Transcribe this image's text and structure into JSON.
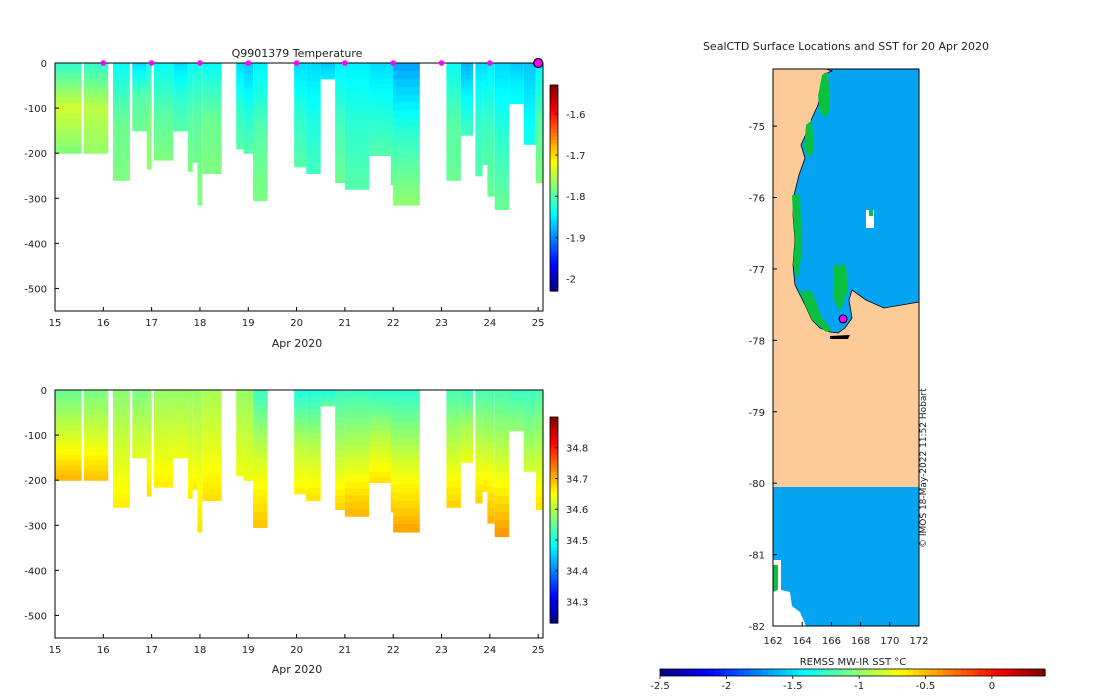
{
  "chart_data": [
    {
      "type": "heatmap",
      "title": "Q9901379  Temperature",
      "xlabel": "Apr 2020",
      "ylabel": "",
      "xlim": [
        15,
        25.1
      ],
      "ylim": [
        -550,
        0
      ],
      "xticks": [
        15,
        16,
        17,
        18,
        19,
        20,
        21,
        22,
        23,
        24,
        25
      ],
      "yticks": [
        0,
        -100,
        -200,
        -300,
        -400,
        -500
      ],
      "colorbar": {
        "ticks": [
          -1.6,
          -1.7,
          -1.8,
          -1.9,
          -2
        ],
        "range": [
          -2.03,
          -1.53
        ]
      },
      "profile_markers_day": [
        16,
        17,
        18,
        19,
        20,
        21,
        22,
        23,
        24
      ],
      "latest_profile_day": 25,
      "profiles": [
        {
          "t": 15.0,
          "w": 0.55,
          "depth": 200,
          "top": -1.82,
          "mid": -1.74,
          "bottom": -1.78
        },
        {
          "t": 15.6,
          "w": 0.5,
          "depth": 200,
          "top": -1.82,
          "mid": -1.75,
          "bottom": -1.77
        },
        {
          "t": 16.2,
          "w": 0.35,
          "depth": 260,
          "top": -1.84,
          "mid": -1.79,
          "bottom": -1.78
        },
        {
          "t": 16.6,
          "w": 0.3,
          "depth": 150,
          "top": -1.86,
          "mid": -1.8,
          "bottom": -1.79
        },
        {
          "t": 16.9,
          "w": 0.1,
          "depth": 235,
          "top": -1.83,
          "mid": -1.78,
          "bottom": -1.77
        },
        {
          "t": 17.05,
          "w": 0.4,
          "depth": 215,
          "top": -1.84,
          "mid": -1.8,
          "bottom": -1.78
        },
        {
          "t": 17.45,
          "w": 0.3,
          "depth": 150,
          "top": -1.86,
          "mid": -1.82,
          "bottom": -1.8
        },
        {
          "t": 17.75,
          "w": 0.1,
          "depth": 240,
          "top": -1.84,
          "mid": -1.8,
          "bottom": -1.78
        },
        {
          "t": 17.85,
          "w": 0.1,
          "depth": 220,
          "top": -1.84,
          "mid": -1.8,
          "bottom": -1.79
        },
        {
          "t": 17.95,
          "w": 0.1,
          "depth": 315,
          "top": -1.83,
          "mid": -1.79,
          "bottom": -1.78
        },
        {
          "t": 18.05,
          "w": 0.4,
          "depth": 245,
          "top": -1.84,
          "mid": -1.79,
          "bottom": -1.78
        },
        {
          "t": 18.75,
          "w": 0.15,
          "depth": 190,
          "top": -1.86,
          "mid": -1.82,
          "bottom": -1.8
        },
        {
          "t": 18.9,
          "w": 0.2,
          "depth": 200,
          "top": -1.87,
          "mid": -1.83,
          "bottom": -1.8
        },
        {
          "t": 19.1,
          "w": 0.3,
          "depth": 305,
          "top": -1.85,
          "mid": -1.8,
          "bottom": -1.78
        },
        {
          "t": 19.95,
          "w": 0.25,
          "depth": 230,
          "top": -1.86,
          "mid": -1.82,
          "bottom": -1.8
        },
        {
          "t": 20.2,
          "w": 0.3,
          "depth": 245,
          "top": -1.86,
          "mid": -1.83,
          "bottom": -1.81
        },
        {
          "t": 20.5,
          "w": 0.3,
          "depth": 35,
          "top": -1.87,
          "mid": -1.86,
          "bottom": -1.85
        },
        {
          "t": 20.8,
          "w": 0.2,
          "depth": 265,
          "top": -1.85,
          "mid": -1.81,
          "bottom": -1.79
        },
        {
          "t": 21.0,
          "w": 0.5,
          "depth": 280,
          "top": -1.85,
          "mid": -1.82,
          "bottom": -1.8
        },
        {
          "t": 21.5,
          "w": 0.5,
          "depth": 205,
          "top": -1.86,
          "mid": -1.83,
          "bottom": -1.8
        },
        {
          "t": 21.95,
          "w": 0.15,
          "depth": 270,
          "top": -1.86,
          "mid": -1.82,
          "bottom": -1.79
        },
        {
          "t": 22.0,
          "w": 0.55,
          "depth": 315,
          "top": -1.89,
          "mid": -1.82,
          "bottom": -1.77
        },
        {
          "t": 23.1,
          "w": 0.3,
          "depth": 260,
          "top": -1.84,
          "mid": -1.8,
          "bottom": -1.79
        },
        {
          "t": 23.4,
          "w": 0.25,
          "depth": 160,
          "top": -1.88,
          "mid": -1.84,
          "bottom": -1.81
        },
        {
          "t": 23.7,
          "w": 0.15,
          "depth": 250,
          "top": -1.86,
          "mid": -1.82,
          "bottom": -1.8
        },
        {
          "t": 23.85,
          "w": 0.15,
          "depth": 225,
          "top": -1.86,
          "mid": -1.82,
          "bottom": -1.8
        },
        {
          "t": 23.95,
          "w": 0.15,
          "depth": 295,
          "top": -1.85,
          "mid": -1.81,
          "bottom": -1.79
        },
        {
          "t": 24.1,
          "w": 0.3,
          "depth": 325,
          "top": -1.86,
          "mid": -1.82,
          "bottom": -1.79
        },
        {
          "t": 24.4,
          "w": 0.3,
          "depth": 90,
          "top": -1.87,
          "mid": -1.85,
          "bottom": -1.84
        },
        {
          "t": 24.7,
          "w": 0.25,
          "depth": 180,
          "top": -1.87,
          "mid": -1.85,
          "bottom": -1.83
        },
        {
          "t": 24.95,
          "w": 0.15,
          "depth": 265,
          "top": -1.85,
          "mid": -1.8,
          "bottom": -1.78
        }
      ]
    },
    {
      "type": "heatmap",
      "title": "",
      "xlabel": "Apr 2020",
      "ylabel": "",
      "xlim": [
        15,
        25.1
      ],
      "ylim": [
        -550,
        0
      ],
      "xticks": [
        15,
        16,
        17,
        18,
        19,
        20,
        21,
        22,
        23,
        24,
        25
      ],
      "yticks": [
        0,
        -100,
        -200,
        -300,
        -400,
        -500
      ],
      "colorbar": {
        "ticks": [
          34.8,
          34.7,
          34.6,
          34.5,
          34.4,
          34.3
        ],
        "range": [
          34.23,
          34.9
        ]
      },
      "profiles": [
        {
          "t": 15.0,
          "w": 0.55,
          "depth": 200,
          "top": 34.55,
          "mid": 34.62,
          "bottom": 34.7
        },
        {
          "t": 15.6,
          "w": 0.5,
          "depth": 200,
          "top": 34.56,
          "mid": 34.62,
          "bottom": 34.69
        },
        {
          "t": 16.2,
          "w": 0.35,
          "depth": 260,
          "top": 34.57,
          "mid": 34.62,
          "bottom": 34.66
        },
        {
          "t": 16.6,
          "w": 0.3,
          "depth": 150,
          "top": 34.56,
          "mid": 34.6,
          "bottom": 34.63
        },
        {
          "t": 16.9,
          "w": 0.1,
          "depth": 235,
          "top": 34.57,
          "mid": 34.62,
          "bottom": 34.67
        },
        {
          "t": 17.05,
          "w": 0.4,
          "depth": 215,
          "top": 34.58,
          "mid": 34.62,
          "bottom": 34.66
        },
        {
          "t": 17.45,
          "w": 0.3,
          "depth": 150,
          "top": 34.58,
          "mid": 34.61,
          "bottom": 34.64
        },
        {
          "t": 17.75,
          "w": 0.1,
          "depth": 240,
          "top": 34.58,
          "mid": 34.62,
          "bottom": 34.66
        },
        {
          "t": 17.85,
          "w": 0.1,
          "depth": 220,
          "top": 34.58,
          "mid": 34.62,
          "bottom": 34.66
        },
        {
          "t": 17.95,
          "w": 0.1,
          "depth": 315,
          "top": 34.58,
          "mid": 34.63,
          "bottom": 34.67
        },
        {
          "t": 18.05,
          "w": 0.4,
          "depth": 245,
          "top": 34.59,
          "mid": 34.63,
          "bottom": 34.67
        },
        {
          "t": 18.75,
          "w": 0.15,
          "depth": 190,
          "top": 34.58,
          "mid": 34.61,
          "bottom": 34.64
        },
        {
          "t": 18.9,
          "w": 0.2,
          "depth": 200,
          "top": 34.58,
          "mid": 34.61,
          "bottom": 34.64
        },
        {
          "t": 19.1,
          "w": 0.3,
          "depth": 305,
          "top": 34.52,
          "mid": 34.62,
          "bottom": 34.69
        },
        {
          "t": 19.95,
          "w": 0.25,
          "depth": 230,
          "top": 34.5,
          "mid": 34.6,
          "bottom": 34.66
        },
        {
          "t": 20.2,
          "w": 0.3,
          "depth": 245,
          "top": 34.5,
          "mid": 34.6,
          "bottom": 34.67
        },
        {
          "t": 20.5,
          "w": 0.3,
          "depth": 35,
          "top": 34.5,
          "mid": 34.52,
          "bottom": 34.55
        },
        {
          "t": 20.8,
          "w": 0.2,
          "depth": 265,
          "top": 34.52,
          "mid": 34.6,
          "bottom": 34.68
        },
        {
          "t": 21.0,
          "w": 0.5,
          "depth": 280,
          "top": 34.52,
          "mid": 34.61,
          "bottom": 34.7
        },
        {
          "t": 21.5,
          "w": 0.5,
          "depth": 205,
          "top": 34.51,
          "mid": 34.6,
          "bottom": 34.67
        },
        {
          "t": 21.95,
          "w": 0.15,
          "depth": 270,
          "top": 34.51,
          "mid": 34.61,
          "bottom": 34.69
        },
        {
          "t": 22.0,
          "w": 0.55,
          "depth": 315,
          "top": 34.51,
          "mid": 34.62,
          "bottom": 34.71
        },
        {
          "t": 23.1,
          "w": 0.3,
          "depth": 260,
          "top": 34.53,
          "mid": 34.61,
          "bottom": 34.68
        },
        {
          "t": 23.4,
          "w": 0.25,
          "depth": 160,
          "top": 34.52,
          "mid": 34.59,
          "bottom": 34.64
        },
        {
          "t": 23.7,
          "w": 0.15,
          "depth": 250,
          "top": 34.53,
          "mid": 34.61,
          "bottom": 34.68
        },
        {
          "t": 23.85,
          "w": 0.15,
          "depth": 225,
          "top": 34.53,
          "mid": 34.6,
          "bottom": 34.67
        },
        {
          "t": 23.95,
          "w": 0.15,
          "depth": 295,
          "top": 34.53,
          "mid": 34.62,
          "bottom": 34.7
        },
        {
          "t": 24.1,
          "w": 0.3,
          "depth": 325,
          "top": 34.53,
          "mid": 34.62,
          "bottom": 34.72
        },
        {
          "t": 24.4,
          "w": 0.3,
          "depth": 90,
          "top": 34.52,
          "mid": 34.55,
          "bottom": 34.58
        },
        {
          "t": 24.7,
          "w": 0.25,
          "depth": 180,
          "top": 34.52,
          "mid": 34.57,
          "bottom": 34.62
        },
        {
          "t": 24.95,
          "w": 0.15,
          "depth": 265,
          "top": 34.53,
          "mid": 34.6,
          "bottom": 34.67
        }
      ]
    },
    {
      "type": "map",
      "title": "SealCTD Surface Locations and SST for 20 Apr 2020",
      "xlim": [
        162,
        172
      ],
      "ylim": [
        -82,
        -74.2
      ],
      "xticks": [
        162,
        164,
        166,
        168,
        170,
        172
      ],
      "yticks": [
        -75,
        -76,
        -77,
        -78,
        -79,
        -80,
        -81,
        -82
      ],
      "colorbar": {
        "label": "REMSS MW-IR SST °C",
        "ticks": [
          -2.5,
          -2,
          -1.5,
          -1,
          -0.5,
          0
        ],
        "range": [
          -2.5,
          0.4
        ]
      },
      "ocean_sst": -1.6,
      "coast_sst": -1.1,
      "no_data_lat_range": [
        -80,
        -77.6
      ],
      "float_position": {
        "lon": 166.8,
        "lat": -77.7
      }
    }
  ],
  "credit": "© IMOS 18-May-2022 11:52 Hobart",
  "colors": {
    "land": "#fdcb97",
    "ocean": "#05a4f2",
    "marker": "#ff00ff"
  }
}
